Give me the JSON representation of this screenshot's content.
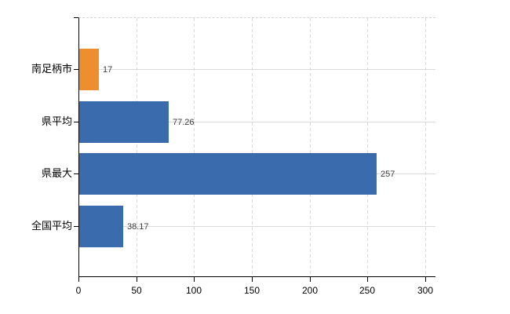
{
  "chart_data": {
    "type": "bar",
    "orientation": "horizontal",
    "title": "",
    "xlabel": "",
    "ylabel": "",
    "categories": [
      "南足柄市",
      "県平均",
      "県最大",
      "全国平均"
    ],
    "values": [
      17,
      77.26,
      257,
      38.17
    ],
    "value_labels": [
      "17",
      "77.26",
      "257",
      "38.17"
    ],
    "bar_colors": [
      "#ED8E2F",
      "#3A6CAD",
      "#3A6CAD",
      "#3A6CAD"
    ],
    "xlim": [
      0,
      300
    ],
    "x_ticks": [
      0,
      50,
      100,
      150,
      200,
      250,
      300
    ],
    "x_tick_labels": [
      "0",
      "50",
      "100",
      "150",
      "200",
      "250",
      "300"
    ],
    "grid": true,
    "legend_position": "none"
  },
  "colors": {
    "background": "#FFFFFF",
    "grid": "#D9D9D9",
    "axis": "#000000",
    "value_label_text": "#3C3C3C",
    "highlight_bar": "#ED8E2F",
    "default_bar": "#3A6CAD"
  }
}
